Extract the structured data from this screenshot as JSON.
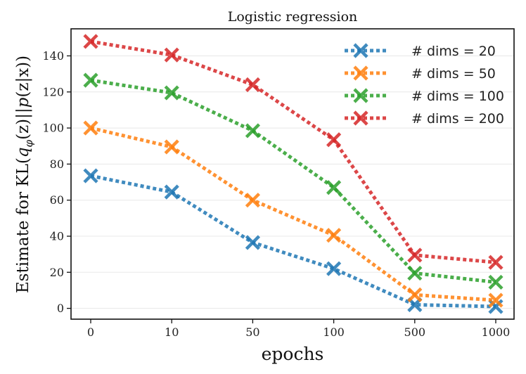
{
  "chart_data": {
    "type": "line",
    "title": "Logistic regression",
    "xlabel": "epochs",
    "ylabel": "Estimate for KL(q_φ(z)||p(z|x))",
    "ylabel_parts": {
      "prefix": "Estimate for KL(",
      "q": "q",
      "phi": "φ",
      "middle": "(z)||",
      "p": "p",
      "suffix": "(z|x))"
    },
    "categories": [
      "0",
      "10",
      "50",
      "100",
      "500",
      "1000"
    ],
    "ylim": [
      -6,
      155
    ],
    "yticks": [
      0,
      20,
      40,
      60,
      80,
      100,
      120,
      140
    ],
    "grid": true,
    "legend_position": "top-right",
    "series": [
      {
        "name": "# dims = 20",
        "color": "#1f77b4",
        "values": [
          73.5,
          64.5,
          36.5,
          22,
          2,
          1
        ]
      },
      {
        "name": "# dims = 50",
        "color": "#ff7f0e",
        "values": [
          100,
          89.5,
          60,
          40.5,
          7.5,
          4.5
        ]
      },
      {
        "name": "# dims = 100",
        "color": "#2ca02c",
        "values": [
          126.5,
          119.5,
          98.5,
          67,
          19.5,
          14.5
        ]
      },
      {
        "name": "# dims = 200",
        "color": "#d62728",
        "values": [
          148,
          140.5,
          124,
          93.5,
          29.5,
          25.5
        ]
      }
    ]
  }
}
